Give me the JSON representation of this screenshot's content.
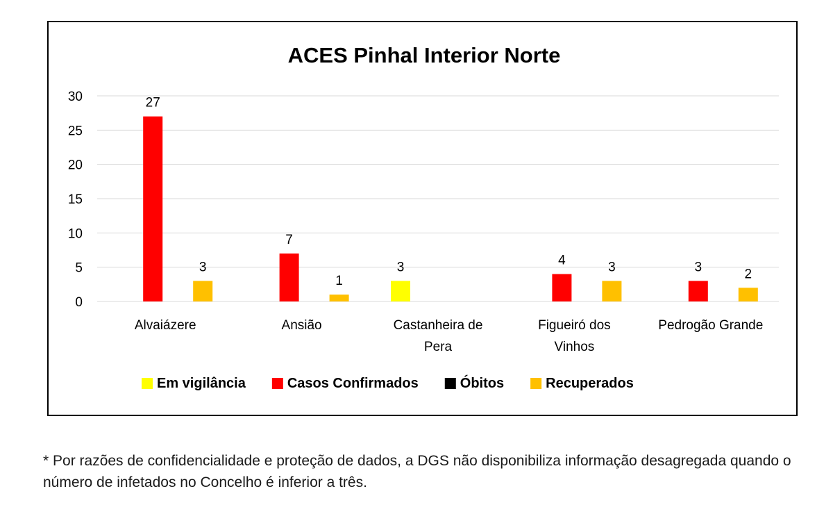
{
  "chart_data": {
    "type": "bar",
    "title": "ACES Pinhal Interior Norte",
    "xlabel": "",
    "ylabel": "",
    "ylim": [
      0,
      30
    ],
    "yticks": [
      0,
      5,
      10,
      15,
      20,
      25,
      30
    ],
    "grid": true,
    "legend_position": "bottom",
    "categories": [
      [
        "Alvaiázere"
      ],
      [
        "Ansião"
      ],
      [
        "Castanheira de",
        "Pera"
      ],
      [
        "Figueiró dos",
        "Vinhos"
      ],
      [
        "Pedrogão Grande"
      ]
    ],
    "series": [
      {
        "name": "Em vigilância",
        "color": "#FFFF00",
        "values": [
          null,
          null,
          3,
          null,
          null
        ]
      },
      {
        "name": "Casos Confirmados",
        "color": "#FF0000",
        "values": [
          27,
          7,
          null,
          4,
          3
        ]
      },
      {
        "name": "Óbitos",
        "color": "#000000",
        "values": [
          null,
          null,
          null,
          null,
          null
        ]
      },
      {
        "name": "Recuperados",
        "color": "#FFC000",
        "values": [
          3,
          1,
          null,
          3,
          2
        ]
      }
    ]
  },
  "footnote": "* Por razões de confidencialidade e proteção de dados, a DGS não disponibiliza informação desagregada quando o número de infetados no Concelho é inferior a três."
}
